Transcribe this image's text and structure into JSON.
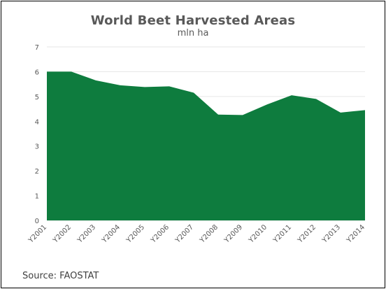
{
  "chart_data": {
    "type": "area",
    "title": "World Beet Harvested Areas",
    "subtitle": "mln ha",
    "categories": [
      "Y2001",
      "Y2002",
      "Y2003",
      "Y2004",
      "Y2005",
      "Y2006",
      "Y2007",
      "Y2008",
      "Y2009",
      "Y2010",
      "Y2011",
      "Y2012",
      "Y2013",
      "Y2014"
    ],
    "series": [
      {
        "values": [
          6.0,
          6.0,
          5.65,
          5.45,
          5.38,
          5.41,
          5.15,
          4.27,
          4.25,
          4.68,
          5.05,
          4.9,
          4.35,
          4.45
        ]
      }
    ],
    "ylim": [
      0,
      7
    ],
    "yticks": [
      0,
      1,
      2,
      3,
      4,
      5,
      6,
      7
    ],
    "grid": true,
    "colors": {
      "area": "#0e7c3e",
      "grid": "#e6e6e6",
      "tick_text": "#595959"
    }
  },
  "footer": {
    "source": "Source: FAOSTAT"
  }
}
